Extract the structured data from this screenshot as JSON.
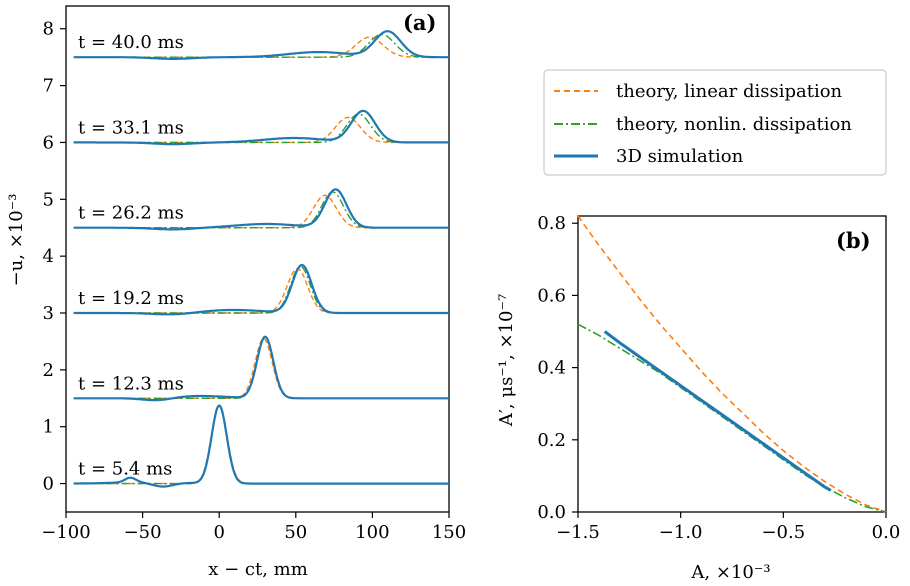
{
  "colors": {
    "linear": "#ff7f0e",
    "nonlin": "#2ca02c",
    "sim": "#1f77b4"
  },
  "legend": [
    {
      "key": "linear",
      "label": "theory, linear dissipation",
      "style": "dashed"
    },
    {
      "key": "nonlin",
      "label": "theory, nonlin. dissipation",
      "style": "dashdot"
    },
    {
      "key": "sim",
      "label": "3D simulation",
      "style": "solid"
    }
  ],
  "chart_data": [
    {
      "type": "line",
      "panel_label": "(a)",
      "xlabel": "x − ct, mm",
      "ylabel": "−u, ×10⁻³",
      "xlim": [
        -100,
        150
      ],
      "ylim": [
        -0.5,
        8.4
      ],
      "xticks": [
        "−100",
        "−50",
        "0",
        "50",
        "100",
        "150"
      ],
      "yticks": [
        "0",
        "1",
        "2",
        "3",
        "4",
        "5",
        "6",
        "7",
        "8"
      ],
      "curves": [
        {
          "time_label": "t = 5.4 ms",
          "baseline": 0.0,
          "peak_x": 0,
          "sim_amp": 1.37,
          "lin_amp": 1.37,
          "nonlin_amp": 1.37,
          "lin_x": 0,
          "nonlin_x": 0,
          "width": 7
        },
        {
          "time_label": "t = 12.3 ms",
          "baseline": 1.5,
          "peak_x": 30,
          "sim_amp": 1.08,
          "lin_amp": 1.05,
          "nonlin_amp": 1.07,
          "lin_x": 29,
          "nonlin_x": 30,
          "width": 7.5
        },
        {
          "time_label": "t = 19.2 ms",
          "baseline": 3.0,
          "peak_x": 54,
          "sim_amp": 0.84,
          "lin_amp": 0.78,
          "nonlin_amp": 0.82,
          "lin_x": 51,
          "nonlin_x": 53,
          "width": 9
        },
        {
          "time_label": "t = 26.2 ms",
          "baseline": 4.5,
          "peak_x": 76,
          "sim_amp": 0.67,
          "lin_amp": 0.57,
          "nonlin_amp": 0.63,
          "lin_x": 69,
          "nonlin_x": 74,
          "width": 10
        },
        {
          "time_label": "t = 33.1 ms",
          "baseline": 6.0,
          "peak_x": 94,
          "sim_amp": 0.55,
          "lin_amp": 0.44,
          "nonlin_amp": 0.5,
          "lin_x": 84,
          "nonlin_x": 91,
          "width": 11
        },
        {
          "time_label": "t = 40.0 ms",
          "baseline": 7.5,
          "peak_x": 110,
          "sim_amp": 0.45,
          "lin_amp": 0.35,
          "nonlin_amp": 0.4,
          "lin_x": 98,
          "nonlin_x": 106,
          "width": 12
        }
      ]
    },
    {
      "type": "line",
      "panel_label": "(b)",
      "xlabel": "A, ×10⁻³",
      "ylabel": "A′, μs⁻¹, ×10⁻⁷",
      "xlim": [
        -1.5,
        0.0
      ],
      "ylim": [
        0.0,
        0.82
      ],
      "xticks": [
        "−1.5",
        "−1.0",
        "−0.5",
        "0.0"
      ],
      "yticks": [
        "0.0",
        "0.2",
        "0.4",
        "0.6",
        "0.8"
      ],
      "series": [
        {
          "key": "linear",
          "x": [
            -1.5,
            -1.4,
            -1.3,
            -1.2,
            -1.1,
            -1.0,
            -0.9,
            -0.8,
            -0.7,
            -0.6,
            -0.5,
            -0.4,
            -0.3,
            -0.2,
            -0.1,
            0.0
          ],
          "y": [
            0.82,
            0.74,
            0.665,
            0.59,
            0.52,
            0.455,
            0.39,
            0.33,
            0.275,
            0.22,
            0.17,
            0.125,
            0.085,
            0.05,
            0.02,
            0.0
          ]
        },
        {
          "key": "nonlin",
          "x": [
            -1.5,
            -1.4,
            -1.3,
            -1.2,
            -1.1,
            -1.0,
            -0.9,
            -0.8,
            -0.7,
            -0.6,
            -0.5,
            -0.4,
            -0.3,
            -0.2,
            -0.1,
            0.0
          ],
          "y": [
            0.52,
            0.49,
            0.455,
            0.42,
            0.385,
            0.345,
            0.305,
            0.265,
            0.225,
            0.185,
            0.145,
            0.105,
            0.07,
            0.04,
            0.015,
            0.0
          ]
        },
        {
          "key": "sim",
          "x": [
            -1.37,
            -1.3,
            -1.2,
            -1.1,
            -1.0,
            -0.9,
            -0.8,
            -0.7,
            -0.6,
            -0.5,
            -0.4,
            -0.3,
            -0.27
          ],
          "y": [
            0.5,
            0.47,
            0.43,
            0.39,
            0.35,
            0.31,
            0.27,
            0.23,
            0.19,
            0.15,
            0.11,
            0.07,
            0.06
          ]
        }
      ]
    }
  ]
}
